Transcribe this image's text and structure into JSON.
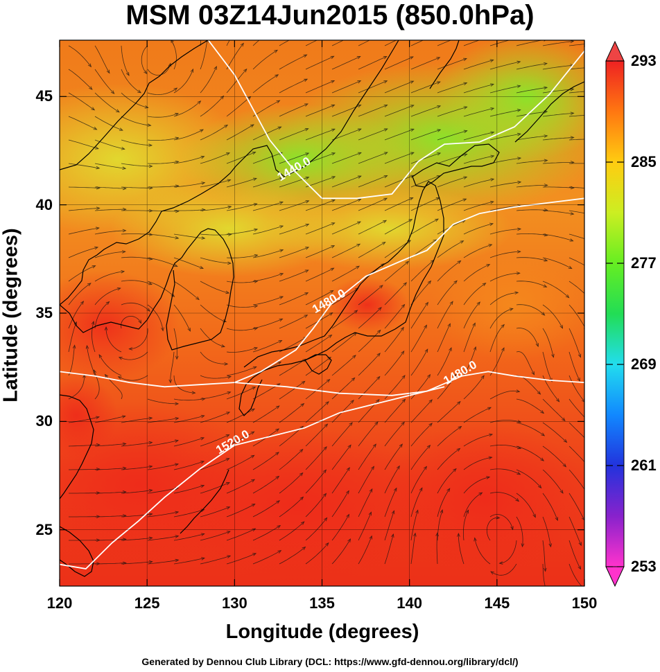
{
  "title": "MSM 03Z14Jun2015 (850.0hPa)",
  "footer": "Generated by Dennou Club Library (DCL: https://www.gfd-dennou.org/library/dcl/)",
  "chart_data": {
    "type": "heatmap",
    "xlabel": "Longitude (degrees)",
    "ylabel": "Latitude  (degrees)",
    "xlim": [
      120,
      150
    ],
    "ylim": [
      22.4,
      47.6
    ],
    "x_ticks": [
      120,
      125,
      130,
      135,
      140,
      145,
      150
    ],
    "y_ticks": [
      25,
      30,
      35,
      40,
      45
    ],
    "colorbar": {
      "range": [
        253,
        293
      ],
      "ticks": [
        253,
        261,
        269,
        277,
        285,
        293
      ],
      "colors": [
        "#ff33cc",
        "#8822cc",
        "#2233dd",
        "#1188ff",
        "#22ddee",
        "#22dd55",
        "#66ee22",
        "#ccee22",
        "#ffcc11",
        "#ff7711",
        "#ee2222"
      ]
    },
    "contours": [
      {
        "label": "1440.0",
        "lon": [
          128.5,
          130,
          131,
          132,
          133.5,
          135,
          137,
          139,
          140.5,
          142,
          144,
          146,
          148,
          150
        ],
        "lat": [
          47.6,
          46,
          44.5,
          43,
          41.5,
          40.3,
          40.3,
          40.5,
          42,
          42.8,
          42.9,
          43.6,
          45.1,
          47.1
        ]
      },
      {
        "label": "1480.0",
        "lon": [
          120,
          122,
          124,
          126,
          128,
          130,
          131.5,
          133.5,
          134.5,
          135.5,
          137.5,
          139.5,
          141,
          142.5,
          144,
          146,
          148,
          150
        ],
        "lat": [
          32.3,
          32.1,
          31.8,
          31.6,
          31.7,
          31.8,
          32.3,
          33.3,
          34.3,
          35.4,
          36.7,
          37.4,
          37.9,
          39.1,
          39.6,
          39.9,
          40.1,
          40.3
        ]
      },
      {
        "label": "1480.0",
        "lon": [
          130,
          133,
          136,
          139,
          141,
          143,
          144.5,
          146,
          148,
          150
        ],
        "lat": [
          31.8,
          31.6,
          31.3,
          31.2,
          31.4,
          32.1,
          32.3,
          32.1,
          31.9,
          31.8
        ]
      },
      {
        "label": "1520.0",
        "lon": [
          120,
          121.5,
          123,
          124.5,
          126,
          128,
          130,
          132,
          134,
          136,
          138,
          140,
          142
        ],
        "lat": [
          23.4,
          23.2,
          24.4,
          25.4,
          26.5,
          27.8,
          28.9,
          29.3,
          29.7,
          30.4,
          30.8,
          31.2,
          31.6
        ]
      }
    ]
  }
}
